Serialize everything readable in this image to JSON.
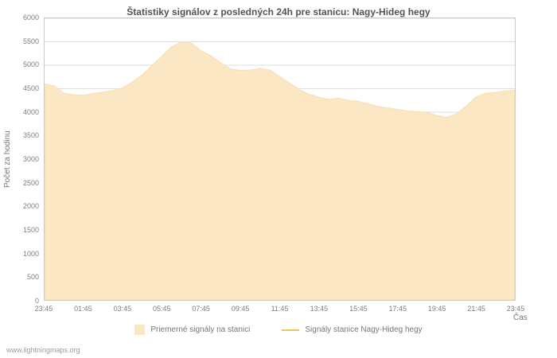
{
  "title": "Štatistiky signálov z posledných 24h pre stanicu: Nagy-Hideg hegy",
  "ylabel": "Počet za hodinu",
  "xlabel": "Čas",
  "watermark": "www.lightningmaps.org",
  "colors": {
    "area_fill": "#fbe7c3",
    "area_edge": "#f5deb3",
    "line_series": "#e5c75f",
    "grid": "#dedede",
    "axis_border": "#c9c9c9",
    "text": "#7e7e7e"
  },
  "legend": [
    {
      "label": "Priemerné signály na stanici",
      "type": "area",
      "color": "#fbe7c3"
    },
    {
      "label": "Signály stanice Nagy-Hideg hegy",
      "type": "line",
      "color": "#e5c75f"
    }
  ],
  "chart_data": {
    "type": "area",
    "title": "Štatistiky signálov z posledných 24h pre stanicu: Nagy-Hideg hegy",
    "xlabel": "Čas",
    "ylabel": "Počet za hodinu",
    "ylim": [
      0,
      6000
    ],
    "y_tick_step": 500,
    "grid": true,
    "legend_position": "bottom",
    "x_tick_labels": [
      "23:45",
      "01:45",
      "03:45",
      "05:45",
      "07:45",
      "09:45",
      "11:45",
      "13:45",
      "15:45",
      "17:45",
      "19:45",
      "21:45",
      "23:45"
    ],
    "x_interval_minutes": 30,
    "series": [
      {
        "name": "Priemerné signály na stanici",
        "color": "#fbe7c3",
        "edge_color": "#f5deb3",
        "values": [
          4600,
          4560,
          4400,
          4370,
          4360,
          4400,
          4430,
          4460,
          4520,
          4650,
          4800,
          5000,
          5200,
          5400,
          5500,
          5470,
          5300,
          5200,
          5050,
          4920,
          4890,
          4900,
          4930,
          4900,
          4760,
          4620,
          4480,
          4380,
          4320,
          4270,
          4300,
          4250,
          4230,
          4180,
          4120,
          4090,
          4060,
          4030,
          4010,
          4000,
          3930,
          3890,
          3960,
          4120,
          4320,
          4400,
          4420,
          4450,
          4470
        ]
      }
    ]
  }
}
